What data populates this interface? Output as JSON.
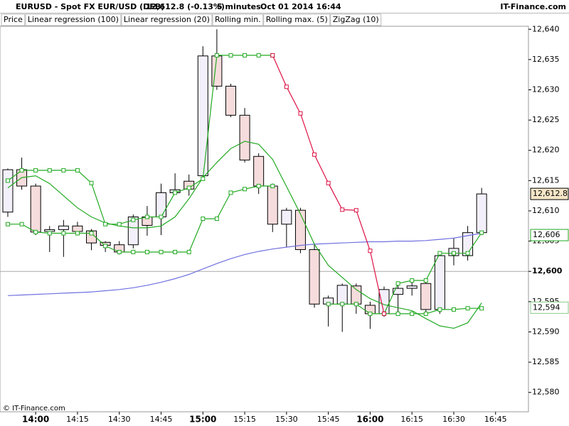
{
  "chart_data": {
    "type": "candlestick",
    "title": "EURUSD - Spot FX EUR/USD (DFB)",
    "last_quote": "12,612.8 (-0.13%)",
    "interval": "5 minutes",
    "timestamp": "Oct 01 2014 16:44",
    "source": "IT-Finance.com",
    "footer": "© IT-Finance.com",
    "x": [
      830,
      835,
      840,
      845,
      850,
      855,
      860,
      865,
      870,
      875,
      880,
      885,
      890,
      895,
      900,
      905,
      910,
      915,
      920,
      925,
      930,
      935,
      940,
      945,
      950,
      955,
      960,
      965,
      970,
      975,
      980,
      985,
      990,
      995,
      1000
    ],
    "xlim": [
      827.2,
      1016.8
    ],
    "xticks": [
      {
        "value": 840,
        "label": "14:00"
      },
      {
        "value": 855,
        "label": "14:15"
      },
      {
        "value": 870,
        "label": "14:30"
      },
      {
        "value": 885,
        "label": "14:45"
      },
      {
        "value": 900,
        "label": "15:00"
      },
      {
        "value": 915,
        "label": "15:15"
      },
      {
        "value": 930,
        "label": "15:30"
      },
      {
        "value": 945,
        "label": "15:45"
      },
      {
        "value": 960,
        "label": "16:00"
      },
      {
        "value": 975,
        "label": "16:15"
      },
      {
        "value": 990,
        "label": "16:30"
      },
      {
        "value": 1005,
        "label": "16:45"
      }
    ],
    "ylim": [
      12576.8,
      12640.5
    ],
    "yticks": [
      {
        "value": 12580,
        "label": "12,580"
      },
      {
        "value": 12585,
        "label": "12,585"
      },
      {
        "value": 12590,
        "label": "12,590"
      },
      {
        "value": 12595,
        "label": "12,595"
      },
      {
        "value": 12600,
        "label": "12,600"
      },
      {
        "value": 12605,
        "label": "12,605"
      },
      {
        "value": 12610,
        "label": "12,610"
      },
      {
        "value": 12615,
        "label": "12,615"
      },
      {
        "value": 12620,
        "label": "12,620"
      },
      {
        "value": 12625,
        "label": "12,625"
      },
      {
        "value": 12630,
        "label": "12,630"
      },
      {
        "value": 12635,
        "label": "12,635"
      },
      {
        "value": 12640,
        "label": "12,640"
      }
    ],
    "reference_level": 12600,
    "candles": {
      "name": "Price",
      "up_color": "#f3f0fb",
      "down_color": "#f6dcdc",
      "open": [
        12609.8,
        12616.8,
        12614.1,
        12606.6,
        12606.9,
        12607.5,
        12606.7,
        12604.8,
        12604.4,
        12604.4,
        12609.0,
        12609.0,
        12613.0,
        12614.9,
        12615.8,
        12635.6,
        12630.6,
        12625.8,
        12619.0,
        12614.1,
        12607.8,
        12610.1,
        12603.6,
        12594.6,
        12594.6,
        12597.6,
        12594.4,
        12593.0,
        12596.2,
        12597.2,
        12598.0,
        12593.7,
        12602.6,
        12602.6,
        12606.4
      ],
      "high": [
        12617.0,
        12618.8,
        12614.5,
        12607.5,
        12608.5,
        12608.2,
        12607.0,
        12605.0,
        12605.0,
        12609.4,
        12610.8,
        12614.5,
        12616.2,
        12616.0,
        12637.2,
        12640.0,
        12631.0,
        12627.0,
        12619.5,
        12614.5,
        12610.5,
        12610.5,
        12604.5,
        12596.0,
        12598.0,
        12598.0,
        12595.0,
        12597.5,
        12598.2,
        12598.5,
        12598.2,
        12603.0,
        12605.5,
        12607.5,
        12613.8
      ],
      "low": [
        12609.0,
        12613.5,
        12606.0,
        12603.2,
        12602.4,
        12606.0,
        12603.5,
        12603.2,
        12602.8,
        12603.8,
        12605.9,
        12606.0,
        12612.8,
        12612.5,
        12615.0,
        12630.0,
        12625.5,
        12618.0,
        12612.8,
        12606.5,
        12604.0,
        12603.0,
        12594.0,
        12590.9,
        12590.0,
        12593.0,
        12590.5,
        12592.5,
        12593.3,
        12596.0,
        12593.0,
        12593.0,
        12601.0,
        12601.8,
        12606.0
      ],
      "close": [
        12616.8,
        12614.1,
        12606.5,
        12606.9,
        12607.5,
        12606.6,
        12604.7,
        12604.3,
        12603.2,
        12609.0,
        12607.6,
        12613.0,
        12613.5,
        12613.6,
        12635.6,
        12630.6,
        12625.8,
        12618.4,
        12614.1,
        12607.8,
        12610.1,
        12603.6,
        12594.6,
        12595.6,
        12597.7,
        12594.6,
        12593.0,
        12597.0,
        12597.2,
        12597.6,
        12593.7,
        12602.6,
        12603.8,
        12606.4,
        12612.8
      ]
    },
    "series": [
      {
        "name": "Linear regression (100)",
        "color": "#7070e0",
        "markers": false,
        "values": [
          12596.0,
          12596.1,
          12596.2,
          12596.3,
          12596.4,
          12596.5,
          12596.6,
          12596.8,
          12597.0,
          12597.3,
          12597.7,
          12598.2,
          12598.8,
          12599.5,
          12600.4,
          12601.3,
          12602.1,
          12602.8,
          12603.3,
          12603.7,
          12604.0,
          12604.3,
          12604.5,
          12604.6,
          12604.7,
          12604.8,
          12604.9,
          12604.9,
          12605.0,
          12605.0,
          12605.1,
          12605.3,
          12605.5,
          12605.9,
          12606.3
        ]
      },
      {
        "name": "Linear regression (20)",
        "color": "#22aa22",
        "markers": false,
        "values": [
          12613.8,
          12615.5,
          12615.8,
          12614.5,
          12612.5,
          12610.5,
          12609.0,
          12608.0,
          12607.5,
          12607.2,
          12607.2,
          12607.5,
          12609.0,
          12612.0,
          12615.5,
          12618.0,
          12620.3,
          12621.5,
          12621.0,
          12618.5,
          12614.0,
          12609.5,
          12604.5,
          12601.0,
          12599.0,
          12597.0,
          12595.5,
          12594.5,
          12594.0,
          12593.5,
          12592.2,
          12591.0,
          12590.6,
          12591.5,
          12594.8
        ]
      },
      {
        "name": "Rolling min.",
        "color": "#22aa22",
        "markers": true,
        "values": [
          12607.8,
          12607.8,
          12606.5,
          12606.3,
          12606.3,
          12606.3,
          12606.3,
          12604.2,
          12603.2,
          12603.2,
          12603.2,
          12603.2,
          12603.2,
          12603.2,
          12608.7,
          12608.7,
          12613.0,
          12613.6,
          12614.1,
          12614.1,
          null,
          null,
          null,
          12594.6,
          12594.6,
          12594.6,
          12593.0,
          12593.0,
          12593.0,
          12593.0,
          12593.0,
          12593.7,
          12593.7,
          12593.9,
          12593.9
        ]
      },
      {
        "name": "Rolling max. (5)",
        "color": "#22aa22",
        "markers": true,
        "values": [
          12615.0,
          12616.7,
          12616.7,
          12616.7,
          12616.7,
          12616.7,
          12614.6,
          12607.8,
          12607.8,
          12608.5,
          12609.0,
          12609.0,
          12613.0,
          12613.8,
          12615.3,
          12635.7,
          12635.7,
          12635.7,
          12635.7,
          12635.7,
          null,
          null,
          null,
          null,
          null,
          null,
          null,
          12593.0,
          12598.0,
          12598.5,
          12598.5,
          12603.0,
          12603.0,
          12603.0,
          12606.4
        ]
      },
      {
        "name": "ZigZag (10)",
        "color": "#dd1144",
        "markers": true,
        "values": [
          null,
          null,
          null,
          null,
          null,
          null,
          null,
          null,
          null,
          null,
          null,
          null,
          null,
          null,
          null,
          null,
          null,
          null,
          null,
          12635.7,
          12630.5,
          12626.1,
          12619.3,
          12614.6,
          12610.2,
          12610.1,
          12603.4,
          12593.0,
          null,
          null,
          null,
          null,
          null,
          null,
          null
        ]
      }
    ],
    "price_tags": [
      {
        "value": 12612.8,
        "label": "12,612.8",
        "color": "#000000"
      },
      {
        "value": 12606,
        "label": "12,606",
        "color": "#22aa22"
      },
      {
        "value": 12594,
        "label": "12,594",
        "color": "#88cc88"
      }
    ]
  }
}
